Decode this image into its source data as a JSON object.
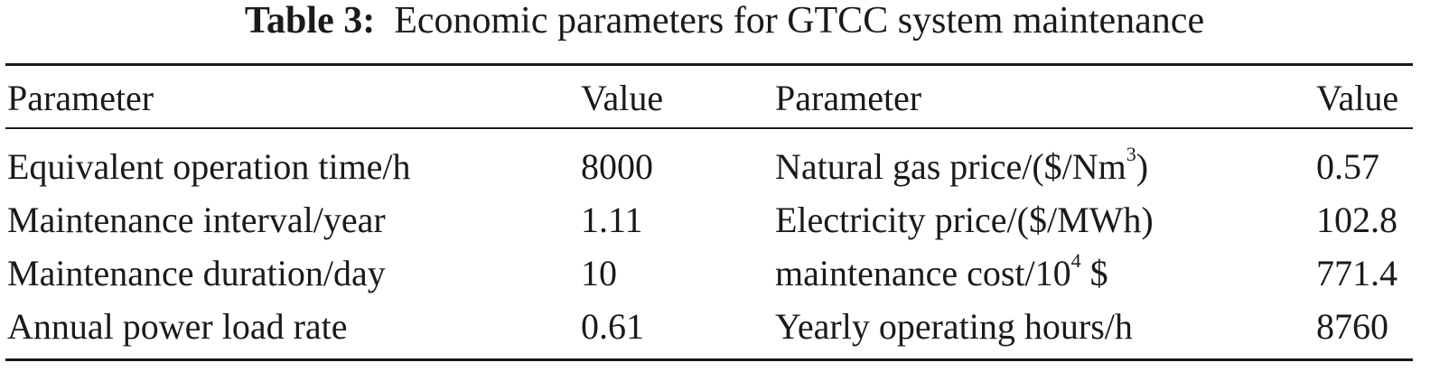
{
  "caption": {
    "label": "Table 3:",
    "title": "Economic parameters for GTCC system maintenance"
  },
  "table": {
    "headers": [
      "Parameter",
      "Value",
      "Parameter",
      "Value"
    ],
    "rows": [
      {
        "left_param": "Equivalent operation time/h",
        "left_value": "8000",
        "right_param_pre": "Natural gas price/($/Nm",
        "right_param_sup": "3",
        "right_param_post": ")",
        "right_value": "0.57"
      },
      {
        "left_param": "Maintenance interval/year",
        "left_value": "1.11",
        "right_param_pre": "Electricity price/($/MWh)",
        "right_param_sup": "",
        "right_param_post": "",
        "right_value": "102.8"
      },
      {
        "left_param": "Maintenance duration/day",
        "left_value": "10",
        "right_param_pre": "maintenance cost/10",
        "right_param_sup": "4",
        "right_param_post": " $",
        "right_value": "771.4"
      },
      {
        "left_param": "Annual power load rate",
        "left_value": "0.61",
        "right_param_pre": "Yearly operating hours/h",
        "right_param_sup": "",
        "right_param_post": "",
        "right_value": "8760"
      }
    ]
  }
}
